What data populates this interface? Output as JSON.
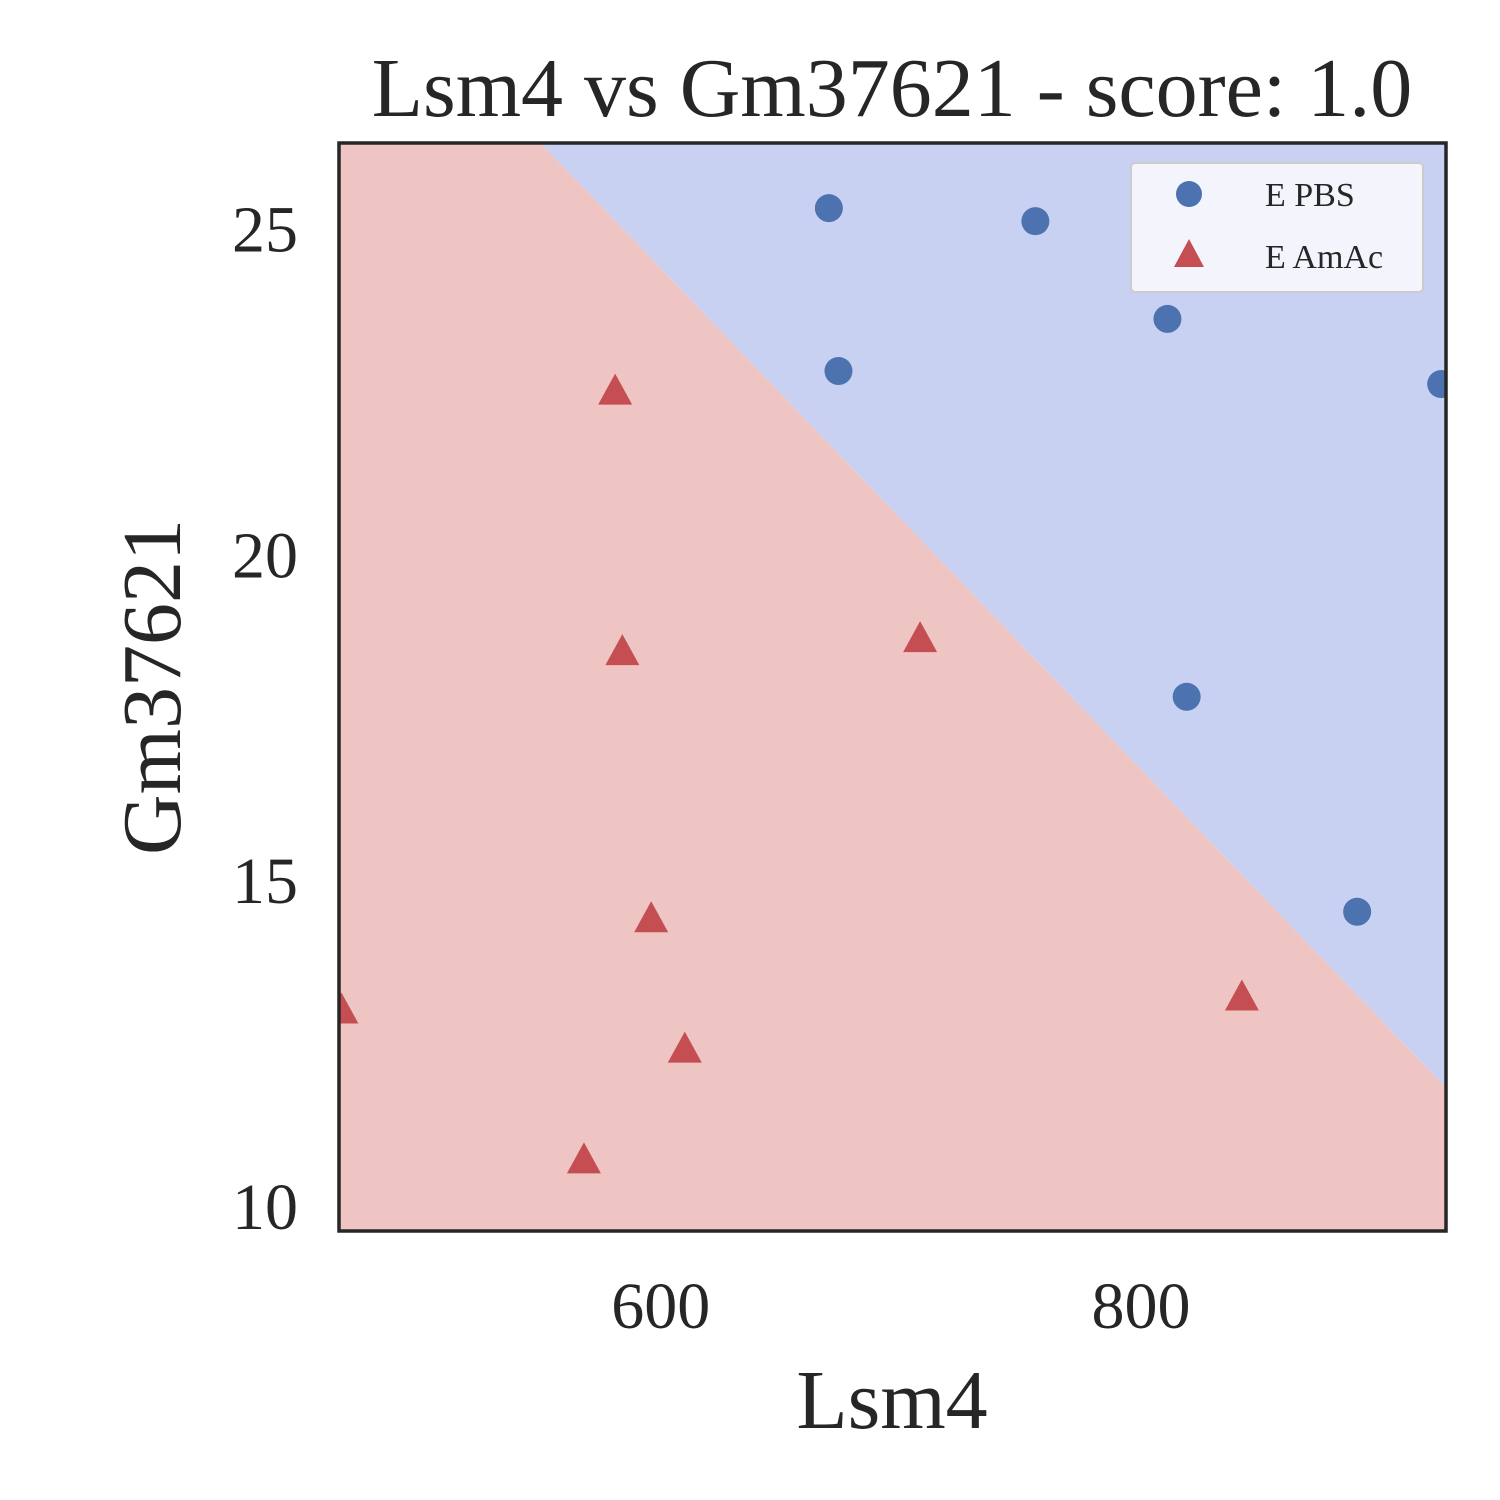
{
  "chart_data": {
    "type": "scatter",
    "title": "Lsm4 vs Gm37621 - score: 1.0",
    "xlabel": "Lsm4",
    "ylabel": "Gm37621",
    "xlim": [
      466,
      927
    ],
    "ylim": [
      9.6,
      26.3
    ],
    "x_ticks": [
      600,
      800
    ],
    "y_ticks": [
      10,
      15,
      20,
      25
    ],
    "grid": false,
    "legend_position": "top-right",
    "background_regions": {
      "boundary_line": [
        [
          550,
          26.3
        ],
        [
          927,
          11.8
        ]
      ],
      "upper_region_color": "#c8d1f1",
      "lower_region_color": "#efc5c4"
    },
    "series": [
      {
        "name": "E PBS",
        "marker": "circle",
        "color": "#4c72b0",
        "points": [
          [
            670,
            25.3
          ],
          [
            756,
            25.1
          ],
          [
            811,
            23.6
          ],
          [
            674,
            22.8
          ],
          [
            925,
            22.6
          ],
          [
            819,
            17.8
          ],
          [
            890,
            14.5
          ]
        ]
      },
      {
        "name": "E AmAc",
        "marker": "triangle",
        "color": "#c44e52",
        "points": [
          [
            581,
            22.5
          ],
          [
            584,
            18.5
          ],
          [
            596,
            14.4
          ],
          [
            610,
            12.4
          ],
          [
            568,
            10.7
          ],
          [
            467,
            13.0
          ],
          [
            708,
            18.7
          ],
          [
            842,
            13.2
          ]
        ]
      }
    ]
  }
}
